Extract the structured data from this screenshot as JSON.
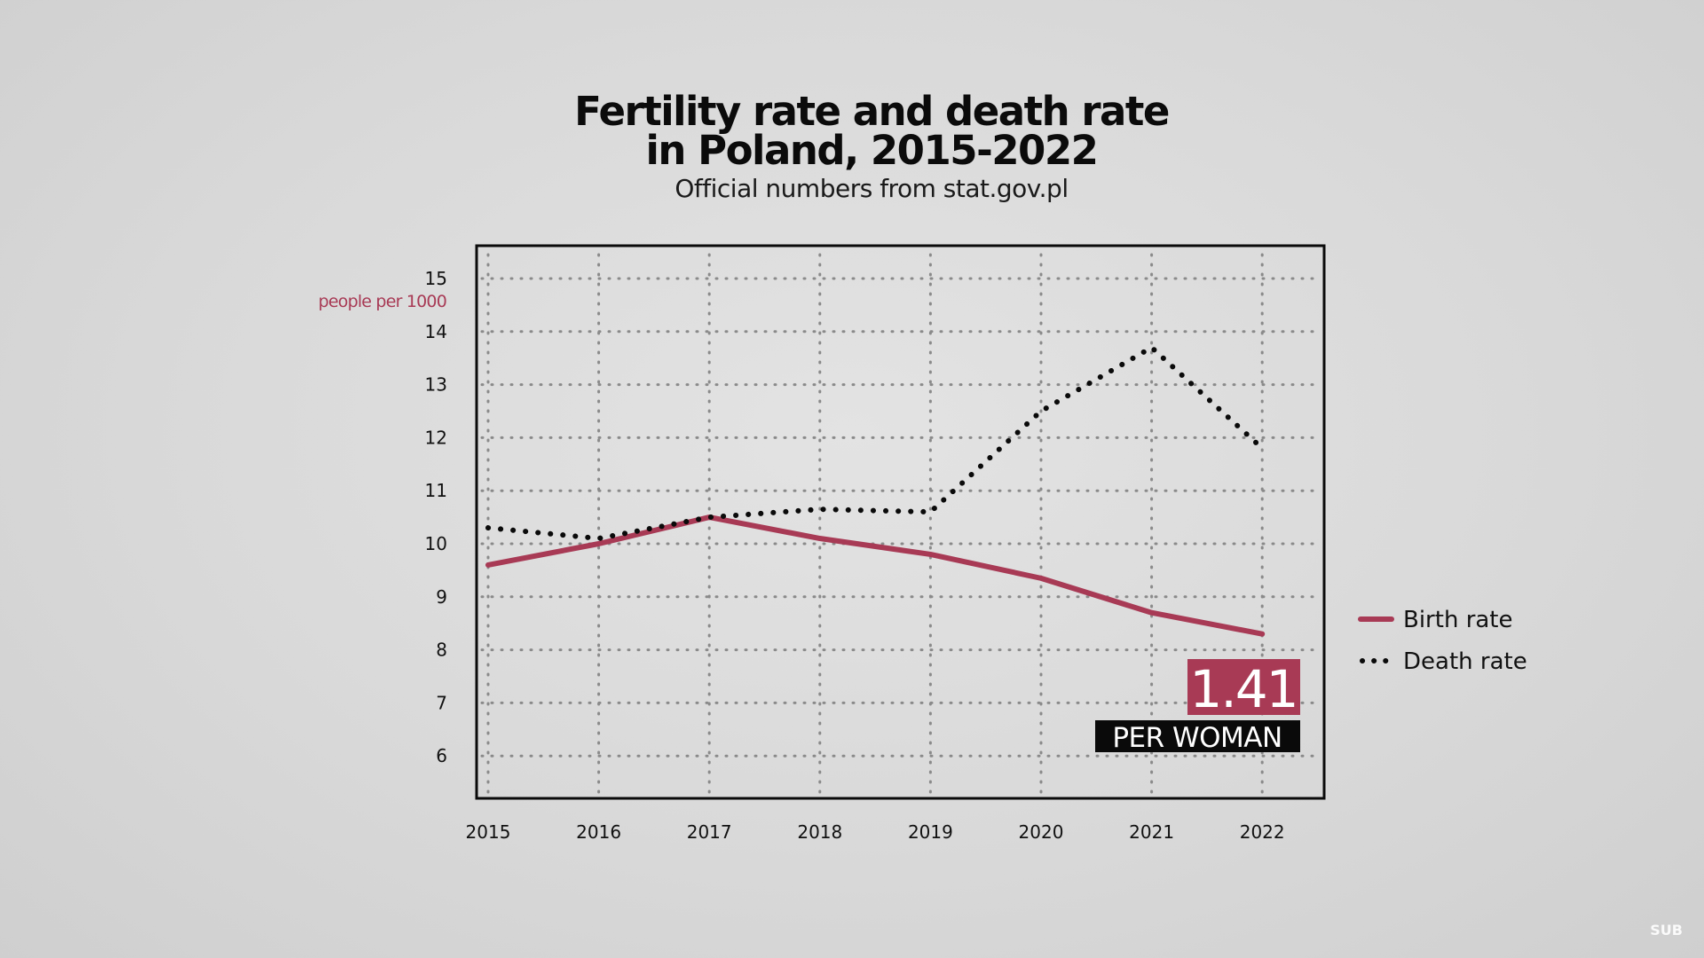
{
  "header": {
    "title_line1": "Fertility rate and death rate",
    "title_line2": "in Poland, 2015-2022",
    "subtitle": "Official numbers from stat.gov.pl"
  },
  "watermark": "SUB",
  "callout": {
    "value": "1.41",
    "label": "PER WOMAN",
    "value_bg": "#a83a55",
    "label_bg": "#0a0a0a"
  },
  "chart_data": {
    "type": "line",
    "title": "Fertility rate and death rate in Poland, 2015-2022",
    "subtitle": "Official numbers from stat.gov.pl",
    "xlabel": "",
    "ylabel": "people per 1000",
    "x": [
      "2015",
      "2016",
      "2017",
      "2018",
      "2019",
      "2020",
      "2021",
      "2022"
    ],
    "ylim": [
      5.5,
      15.6
    ],
    "yticks": [
      6,
      7,
      8,
      9,
      10,
      11,
      12,
      13,
      14,
      15
    ],
    "grid": true,
    "legend_position": "right",
    "series": [
      {
        "name": "Birth rate",
        "style": "solid",
        "color": "#a83a55",
        "values": [
          9.6,
          10.0,
          10.5,
          10.1,
          9.8,
          9.35,
          8.7,
          8.3
        ]
      },
      {
        "name": "Death rate",
        "style": "dotted",
        "color": "#0a0a0a",
        "values": [
          10.3,
          10.1,
          10.5,
          10.65,
          10.6,
          12.5,
          13.7,
          11.8
        ]
      }
    ]
  }
}
